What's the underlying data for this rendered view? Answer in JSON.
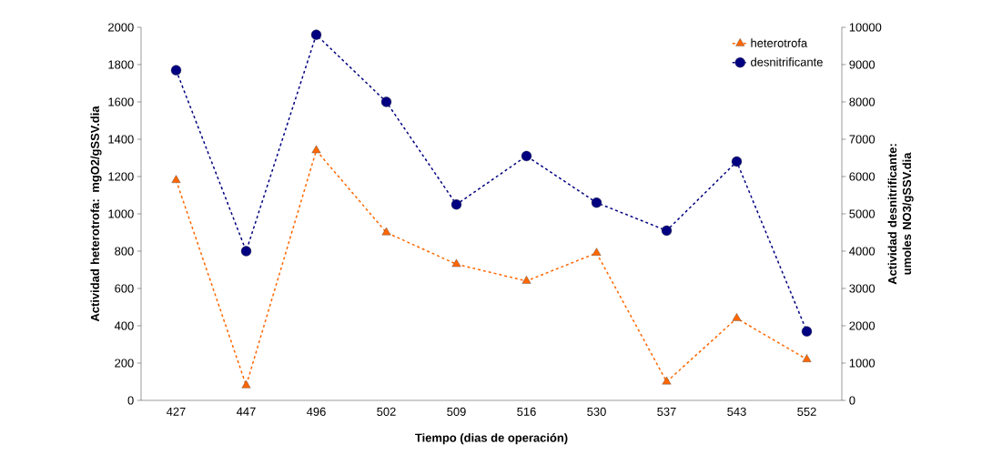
{
  "chart_data": {
    "type": "line",
    "xlabel": "Tiempo (dias de operación)",
    "ylabel": "Actividad heterotrofa: mgO2/gSSV.dia",
    "y2label": "Actividad desnitrificante: umoles NO3/gSSV.dia",
    "categories": [
      "427",
      "447",
      "496",
      "502",
      "509",
      "516",
      "530",
      "537",
      "543",
      "552"
    ],
    "series": [
      {
        "name": "heterotrofa",
        "color": "#ff6600",
        "marker": "triangle",
        "values": [
          1180,
          80,
          1340,
          900,
          730,
          640,
          790,
          100,
          440,
          220
        ]
      },
      {
        "name": "desnitrificante",
        "color": "#000080",
        "marker": "circle",
        "axis": "y2",
        "values": [
          8850,
          4000,
          9800,
          8000,
          5250,
          6550,
          5300,
          4550,
          6400,
          1850
        ]
      }
    ],
    "ylim": [
      0,
      2000
    ],
    "yticks": [
      0,
      200,
      400,
      600,
      800,
      1000,
      1200,
      1400,
      1600,
      1800,
      2000
    ],
    "y2lim": [
      0,
      10000
    ],
    "y2ticks": [
      0,
      1000,
      2000,
      3000,
      4000,
      5000,
      6000,
      7000,
      8000,
      9000,
      10000
    ],
    "line_style": "dashed",
    "legend": "top right",
    "grid": false
  }
}
